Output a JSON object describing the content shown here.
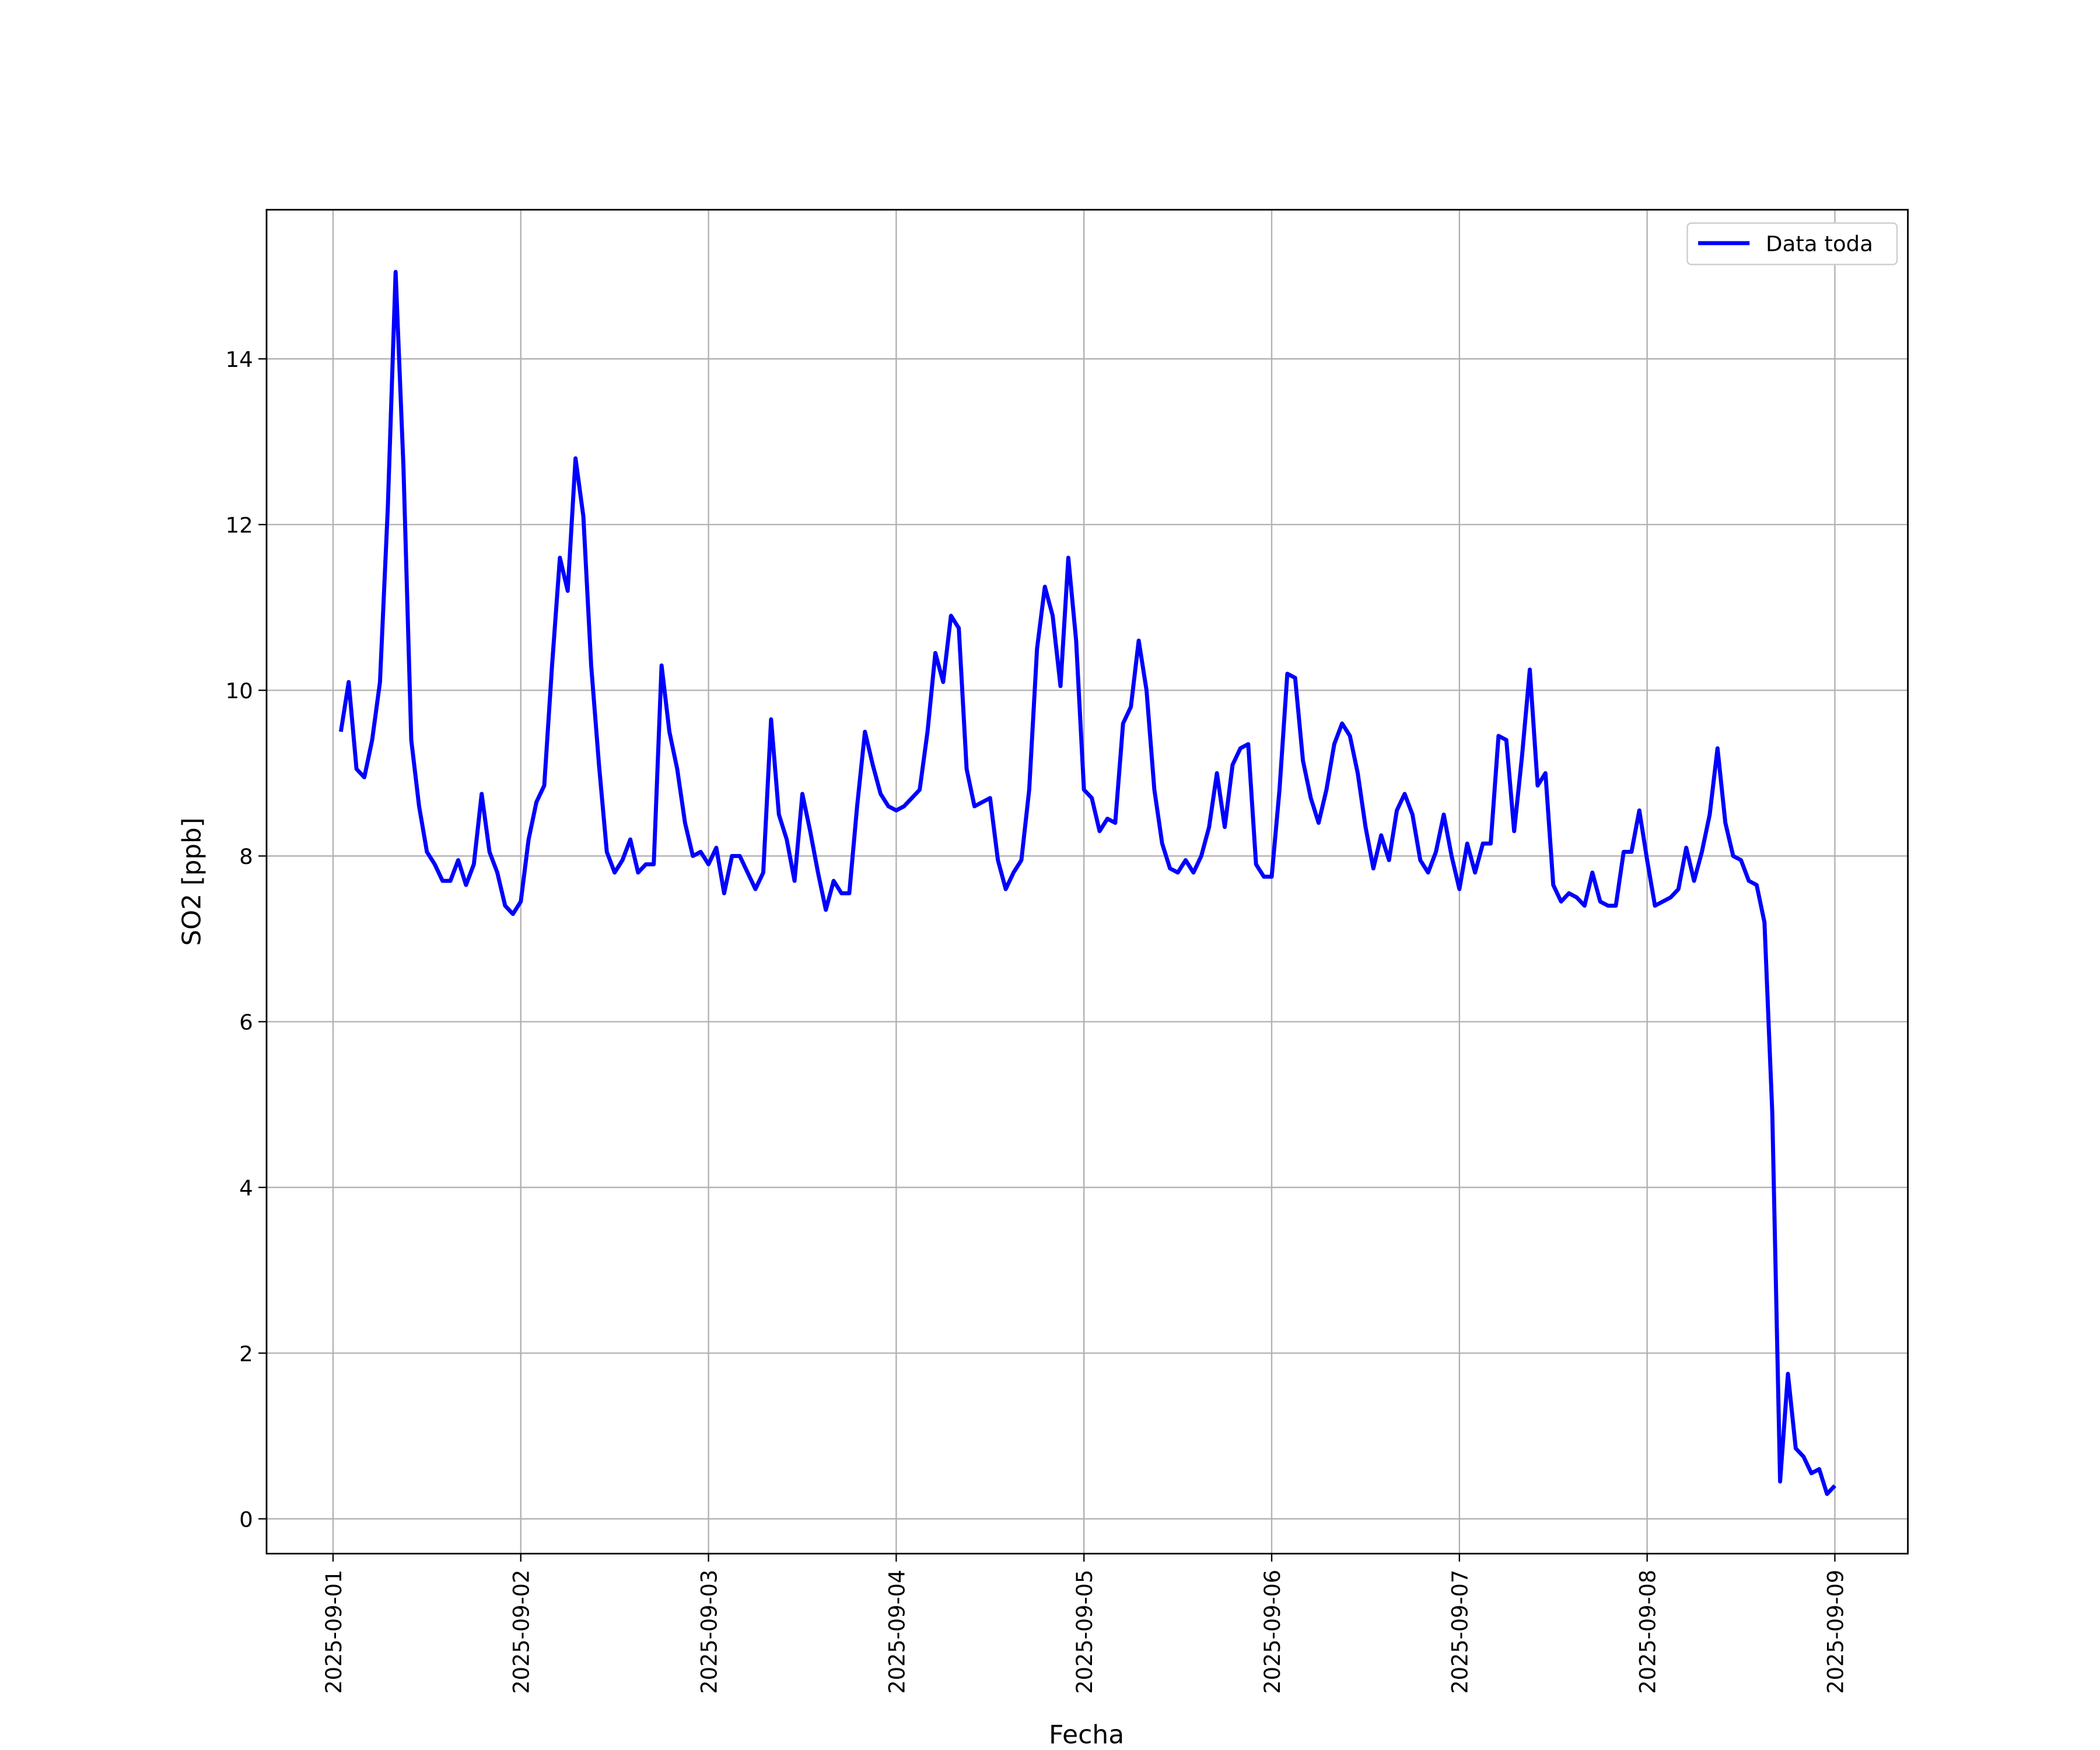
{
  "chart_data": {
    "type": "line",
    "xlabel": "Fecha",
    "ylabel": "SO2 [ppb]",
    "xlim": [
      "2025-08-31 15:30",
      "2025-09-09 09:20"
    ],
    "xticks": [
      "2025-09-01",
      "2025-09-02",
      "2025-09-03",
      "2025-09-04",
      "2025-09-05",
      "2025-09-06",
      "2025-09-07",
      "2025-09-08",
      "2025-09-09"
    ],
    "ylim": [
      -0.42,
      15.8
    ],
    "yticks": [
      0,
      2,
      4,
      6,
      8,
      10,
      12,
      14
    ],
    "grid": true,
    "legend": "upper right",
    "x": [
      "2025-09-01 01:00",
      "2025-09-01 02:00",
      "2025-09-01 03:00",
      "2025-09-01 04:00",
      "2025-09-01 05:00",
      "2025-09-01 06:00",
      "2025-09-01 07:00",
      "2025-09-01 08:00",
      "2025-09-01 09:00",
      "2025-09-01 10:00",
      "2025-09-01 11:00",
      "2025-09-01 12:00",
      "2025-09-01 13:00",
      "2025-09-01 14:00",
      "2025-09-01 15:00",
      "2025-09-01 16:00",
      "2025-09-01 17:00",
      "2025-09-01 18:00",
      "2025-09-01 19:00",
      "2025-09-01 20:00",
      "2025-09-01 21:00",
      "2025-09-01 22:00",
      "2025-09-01 23:00",
      "2025-09-02 00:00",
      "2025-09-02 01:00",
      "2025-09-02 02:00",
      "2025-09-02 03:00",
      "2025-09-02 04:00",
      "2025-09-02 05:00",
      "2025-09-02 06:00",
      "2025-09-02 07:00",
      "2025-09-02 08:00",
      "2025-09-02 09:00",
      "2025-09-02 10:00",
      "2025-09-02 11:00",
      "2025-09-02 12:00",
      "2025-09-02 13:00",
      "2025-09-02 14:00",
      "2025-09-02 15:00",
      "2025-09-02 16:00",
      "2025-09-02 17:00",
      "2025-09-02 18:00",
      "2025-09-02 19:00",
      "2025-09-02 20:00",
      "2025-09-02 21:00",
      "2025-09-02 22:00",
      "2025-09-02 23:00",
      "2025-09-03 00:00",
      "2025-09-03 01:00",
      "2025-09-03 02:00",
      "2025-09-03 03:00",
      "2025-09-03 04:00",
      "2025-09-03 05:00",
      "2025-09-03 06:00",
      "2025-09-03 07:00",
      "2025-09-03 08:00",
      "2025-09-03 09:00",
      "2025-09-03 10:00",
      "2025-09-03 11:00",
      "2025-09-03 12:00",
      "2025-09-03 13:00",
      "2025-09-03 14:00",
      "2025-09-03 15:00",
      "2025-09-03 16:00",
      "2025-09-03 17:00",
      "2025-09-03 18:00",
      "2025-09-03 19:00",
      "2025-09-03 20:00",
      "2025-09-03 21:00",
      "2025-09-03 22:00",
      "2025-09-03 23:00",
      "2025-09-04 00:00",
      "2025-09-04 01:00",
      "2025-09-04 02:00",
      "2025-09-04 03:00",
      "2025-09-04 04:00",
      "2025-09-04 05:00",
      "2025-09-04 06:00",
      "2025-09-04 07:00",
      "2025-09-04 08:00",
      "2025-09-04 09:00",
      "2025-09-04 10:00",
      "2025-09-04 11:00",
      "2025-09-04 12:00",
      "2025-09-04 13:00",
      "2025-09-04 14:00",
      "2025-09-04 15:00",
      "2025-09-04 16:00",
      "2025-09-04 17:00",
      "2025-09-04 18:00",
      "2025-09-04 19:00",
      "2025-09-04 20:00",
      "2025-09-04 21:00",
      "2025-09-04 22:00",
      "2025-09-04 23:00",
      "2025-09-05 00:00",
      "2025-09-05 01:00",
      "2025-09-05 02:00",
      "2025-09-05 03:00",
      "2025-09-05 04:00",
      "2025-09-05 05:00",
      "2025-09-05 06:00",
      "2025-09-05 07:00",
      "2025-09-05 08:00",
      "2025-09-05 09:00",
      "2025-09-05 10:00",
      "2025-09-05 11:00",
      "2025-09-05 12:00",
      "2025-09-05 13:00",
      "2025-09-05 14:00",
      "2025-09-05 15:00",
      "2025-09-05 16:00",
      "2025-09-05 17:00",
      "2025-09-05 18:00",
      "2025-09-05 19:00",
      "2025-09-05 20:00",
      "2025-09-05 21:00",
      "2025-09-05 22:00",
      "2025-09-05 23:00",
      "2025-09-06 00:00",
      "2025-09-06 01:00",
      "2025-09-06 02:00",
      "2025-09-06 03:00",
      "2025-09-06 04:00",
      "2025-09-06 05:00",
      "2025-09-06 06:00",
      "2025-09-06 07:00",
      "2025-09-06 08:00",
      "2025-09-06 09:00",
      "2025-09-06 10:00",
      "2025-09-06 11:00",
      "2025-09-06 12:00",
      "2025-09-06 13:00",
      "2025-09-06 14:00",
      "2025-09-06 15:00",
      "2025-09-06 16:00",
      "2025-09-06 17:00",
      "2025-09-06 18:00",
      "2025-09-06 19:00",
      "2025-09-06 20:00",
      "2025-09-06 21:00",
      "2025-09-06 22:00",
      "2025-09-06 23:00",
      "2025-09-07 00:00",
      "2025-09-07 01:00",
      "2025-09-07 02:00",
      "2025-09-07 03:00",
      "2025-09-07 04:00",
      "2025-09-07 05:00",
      "2025-09-07 06:00",
      "2025-09-07 07:00",
      "2025-09-07 08:00",
      "2025-09-07 09:00",
      "2025-09-07 10:00",
      "2025-09-07 11:00",
      "2025-09-07 12:00",
      "2025-09-07 13:00",
      "2025-09-07 14:00",
      "2025-09-07 15:00",
      "2025-09-07 16:00",
      "2025-09-07 17:00",
      "2025-09-07 18:00",
      "2025-09-07 19:00",
      "2025-09-07 20:00",
      "2025-09-07 21:00",
      "2025-09-07 22:00",
      "2025-09-07 23:00",
      "2025-09-08 00:00",
      "2025-09-08 01:00",
      "2025-09-08 02:00",
      "2025-09-08 03:00",
      "2025-09-08 04:00",
      "2025-09-08 05:00",
      "2025-09-08 06:00",
      "2025-09-08 07:00",
      "2025-09-08 08:00",
      "2025-09-08 09:00",
      "2025-09-08 10:00",
      "2025-09-08 11:00",
      "2025-09-08 12:00",
      "2025-09-08 13:00",
      "2025-09-08 14:00",
      "2025-09-08 15:00",
      "2025-09-08 16:00",
      "2025-09-08 17:00",
      "2025-09-08 18:00",
      "2025-09-08 19:00",
      "2025-09-08 20:00",
      "2025-09-08 21:00",
      "2025-09-08 22:00",
      "2025-09-08 23:00",
      "2025-09-09 00:00"
    ],
    "series": [
      {
        "name": "Data toda",
        "color": "#0000ff",
        "values": [
          9.5,
          10.1,
          9.05,
          8.95,
          9.4,
          10.1,
          12.2,
          15.05,
          12.7,
          9.4,
          8.6,
          8.05,
          7.9,
          7.7,
          7.7,
          7.95,
          7.65,
          7.9,
          8.75,
          8.05,
          7.8,
          7.4,
          7.3,
          7.45,
          8.2,
          8.65,
          8.85,
          10.3,
          11.6,
          11.2,
          12.8,
          12.1,
          10.3,
          9.1,
          8.05,
          7.8,
          7.95,
          8.2,
          7.8,
          7.9,
          7.9,
          10.3,
          9.5,
          9.05,
          8.4,
          8.0,
          8.05,
          7.9,
          8.1,
          7.55,
          8.0,
          8.0,
          7.8,
          7.6,
          7.8,
          9.65,
          8.5,
          8.2,
          7.7,
          8.75,
          8.3,
          7.8,
          7.35,
          7.7,
          7.55,
          7.55,
          8.6,
          9.5,
          9.1,
          8.75,
          8.6,
          8.55,
          8.6,
          8.7,
          8.8,
          9.5,
          10.45,
          10.1,
          10.9,
          10.75,
          9.05,
          8.6,
          8.65,
          8.7,
          7.95,
          7.6,
          7.8,
          7.95,
          8.8,
          10.5,
          11.25,
          10.9,
          10.05,
          11.6,
          10.6,
          8.8,
          8.7,
          8.3,
          8.45,
          8.4,
          9.6,
          9.8,
          10.6,
          10.0,
          8.8,
          8.15,
          7.85,
          7.8,
          7.95,
          7.8,
          8.0,
          8.35,
          9.0,
          8.35,
          9.1,
          9.3,
          9.35,
          7.9,
          7.75,
          7.75,
          8.8,
          10.2,
          10.15,
          9.15,
          8.7,
          8.4,
          8.8,
          9.35,
          9.6,
          9.45,
          9.0,
          8.35,
          7.85,
          8.25,
          7.95,
          8.55,
          8.75,
          8.5,
          7.95,
          7.8,
          8.05,
          8.5,
          8.0,
          7.6,
          8.15,
          7.8,
          8.15,
          8.15,
          9.45,
          9.4,
          8.3,
          9.2,
          10.25,
          8.85,
          9.0,
          7.65,
          7.45,
          7.55,
          7.5,
          7.4,
          7.8,
          7.45,
          7.4,
          7.4,
          8.05,
          8.05,
          8.55,
          7.95,
          7.4,
          7.45,
          7.5,
          7.6,
          8.1,
          7.7,
          8.05,
          8.5,
          9.3,
          8.4,
          8.0,
          7.95,
          7.7,
          7.65,
          7.2,
          4.9,
          0.45,
          1.75,
          0.85,
          0.75,
          0.55,
          0.6,
          0.3,
          0.4
        ]
      }
    ]
  }
}
